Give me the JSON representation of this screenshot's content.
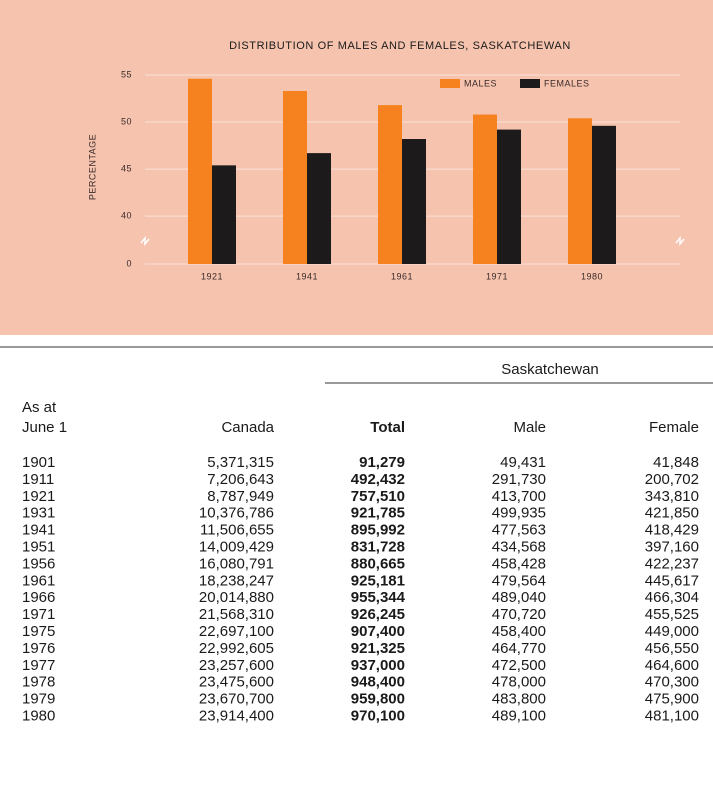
{
  "chart_data": {
    "type": "bar",
    "title": "DISTRIBUTION OF MALES AND FEMALES, SASKATCHEWAN",
    "ylabel": "PERCENTAGE",
    "categories": [
      "1921",
      "1941",
      "1961",
      "1971",
      "1980"
    ],
    "series": [
      {
        "name": "MALES",
        "color": "#f5821f",
        "values": [
          54.6,
          53.3,
          51.8,
          50.8,
          50.4
        ]
      },
      {
        "name": "FEMALES",
        "color": "#1c1a1a",
        "values": [
          45.4,
          46.7,
          48.2,
          49.2,
          49.6
        ]
      }
    ],
    "ylim": [
      0,
      55
    ],
    "y_break": [
      0,
      38
    ],
    "yticks": [
      0,
      40,
      45,
      50,
      55
    ],
    "grid": true,
    "legend": "top-right"
  },
  "table": {
    "group_header": "Saskatchewan",
    "stub_header": [
      "As at",
      "June 1"
    ],
    "columns": [
      "Canada",
      "Total",
      "Male",
      "Female"
    ],
    "rows": [
      [
        "1901",
        "5,371,315",
        "91,279",
        "49,431",
        "41,848"
      ],
      [
        "1911",
        "7,206,643",
        "492,432",
        "291,730",
        "200,702"
      ],
      [
        "1921",
        "8,787,949",
        "757,510",
        "413,700",
        "343,810"
      ],
      [
        "1931",
        "10,376,786",
        "921,785",
        "499,935",
        "421,850"
      ],
      [
        "1941",
        "11,506,655",
        "895,992",
        "477,563",
        "418,429"
      ],
      [
        "1951",
        "14,009,429",
        "831,728",
        "434,568",
        "397,160"
      ],
      [
        "1956",
        "16,080,791",
        "880,665",
        "458,428",
        "422,237"
      ],
      [
        "1961",
        "18,238,247",
        "925,181",
        "479,564",
        "445,617"
      ],
      [
        "1966",
        "20,014,880",
        "955,344",
        "489,040",
        "466,304"
      ],
      [
        "1971",
        "21,568,310",
        "926,245",
        "470,720",
        "455,525"
      ],
      [
        "1975",
        "22,697,100",
        "907,400",
        "458,400",
        "449,000"
      ],
      [
        "1976",
        "22,992,605",
        "921,325",
        "464,770",
        "456,550"
      ],
      [
        "1977",
        "23,257,600",
        "937,000",
        "472,500",
        "464,600"
      ],
      [
        "1978",
        "23,475,600",
        "948,400",
        "478,000",
        "470,300"
      ],
      [
        "1979",
        "23,670,700",
        "959,800",
        "483,800",
        "475,900"
      ],
      [
        "1980",
        "23,914,400",
        "970,100",
        "489,100",
        "481,100"
      ]
    ]
  }
}
